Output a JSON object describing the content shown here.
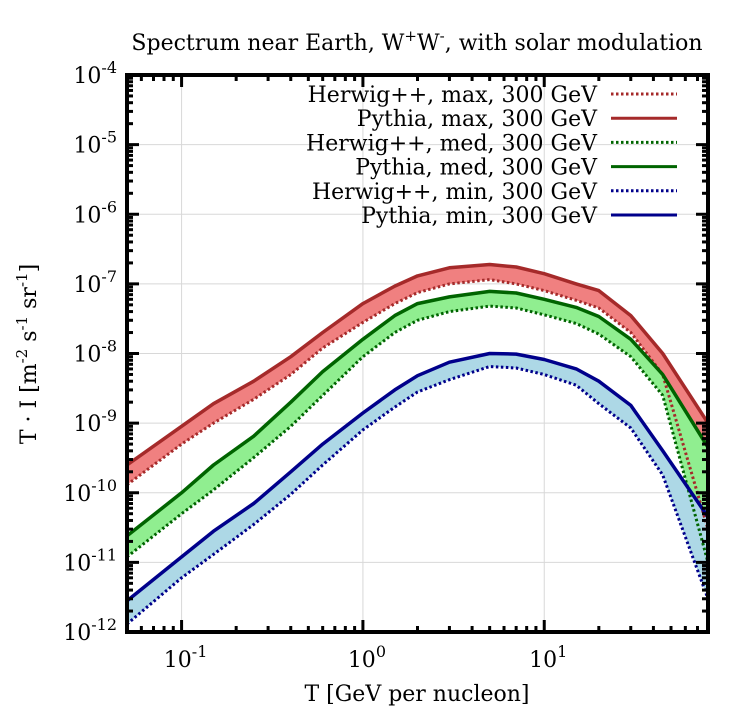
{
  "chart_data": {
    "type": "line",
    "title": "Spectrum near Earth, W+W-, with solar modulation",
    "xlabel": "T [GeV per nucleon]",
    "ylabel": "T · I [m-2 s-1 sr-1]",
    "xscale": "log",
    "yscale": "log",
    "xlim": [
      0.05,
      80
    ],
    "ylim": [
      1e-12,
      0.0001
    ],
    "grid": true,
    "legend_position": "top-right",
    "x_ticks": [
      {
        "value": 0.1,
        "base": "10",
        "exp": "-1"
      },
      {
        "value": 1,
        "base": "10",
        "exp": "0"
      },
      {
        "value": 10,
        "base": "10",
        "exp": "1"
      }
    ],
    "y_ticks": [
      {
        "value": 1e-12,
        "base": "10",
        "exp": "-12"
      },
      {
        "value": 1e-11,
        "base": "10",
        "exp": "-11"
      },
      {
        "value": 1e-10,
        "base": "10",
        "exp": "-10"
      },
      {
        "value": 1e-09,
        "base": "10",
        "exp": "-9"
      },
      {
        "value": 1e-08,
        "base": "10",
        "exp": "-8"
      },
      {
        "value": 1e-07,
        "base": "10",
        "exp": "-7"
      },
      {
        "value": 1e-06,
        "base": "10",
        "exp": "-6"
      },
      {
        "value": 1e-05,
        "base": "10",
        "exp": "-5"
      },
      {
        "value": 0.0001,
        "base": "10",
        "exp": "-4"
      }
    ],
    "x": [
      0.05,
      0.1,
      0.15,
      0.25,
      0.4,
      0.6,
      1,
      1.5,
      2,
      3,
      5,
      7,
      10,
      15,
      20,
      30,
      45,
      80
    ],
    "series": [
      {
        "name": "Herwig++, max, 300 GeV",
        "style": "dotted",
        "color": "#a52a2a",
        "values": [
          1.3e-10,
          5e-10,
          1e-09,
          2.2e-09,
          5e-09,
          1.2e-08,
          2.8e-08,
          5.2e-08,
          7.5e-08,
          1e-07,
          1.15e-07,
          1e-07,
          8e-08,
          5.8e-08,
          4.5e-08,
          2e-08,
          5e-09,
          3e-11
        ]
      },
      {
        "name": "Pythia, max, 300 GeV",
        "style": "solid",
        "color": "#a52a2a",
        "values": [
          2.5e-10,
          9e-10,
          1.9e-09,
          4e-09,
          9e-09,
          2e-08,
          5.2e-08,
          9.3e-08,
          1.3e-07,
          1.7e-07,
          1.9e-07,
          1.75e-07,
          1.4e-07,
          1e-07,
          8e-08,
          3.5e-08,
          1e-08,
          1e-09
        ]
      },
      {
        "name": "Herwig++, med, 300 GeV",
        "style": "dotted",
        "color": "#006400",
        "values": [
          1.2e-11,
          5e-11,
          1.1e-10,
          3.2e-10,
          9e-10,
          2.5e-09,
          9e-09,
          2e-08,
          3e-08,
          4e-08,
          4.8e-08,
          4.5e-08,
          3.6e-08,
          2.7e-08,
          1.9e-08,
          9e-09,
          2.5e-09,
          1e-11
        ]
      },
      {
        "name": "Pythia, med, 300 GeV",
        "style": "solid",
        "color": "#006400",
        "values": [
          2.4e-11,
          1e-10,
          2.5e-10,
          6.5e-10,
          2e-09,
          5.5e-09,
          1.6e-08,
          3.5e-08,
          5.2e-08,
          6.5e-08,
          7.8e-08,
          7.4e-08,
          6e-08,
          4.6e-08,
          3.4e-08,
          1.6e-08,
          5e-09,
          4.5e-10
        ]
      },
      {
        "name": "Herwig++, min, 300 GeV",
        "style": "dotted",
        "color": "#00008b",
        "values": [
          1.3e-12,
          6e-12,
          1.3e-11,
          3.5e-11,
          9.5e-11,
          2.5e-10,
          8e-10,
          1.7e-09,
          2.8e-09,
          4.2e-09,
          6.5e-09,
          6.2e-09,
          5e-09,
          3.5e-09,
          1.9e-09,
          8.5e-10,
          1.8e-10,
          3e-12
        ]
      },
      {
        "name": "Pythia, min, 300 GeV",
        "style": "solid",
        "color": "#00008b",
        "values": [
          2.8e-12,
          1.2e-11,
          2.8e-11,
          7e-11,
          2e-10,
          5e-10,
          1.4e-09,
          3e-09,
          4.8e-09,
          7.5e-09,
          1e-08,
          9.8e-09,
          8.2e-09,
          6e-09,
          4e-09,
          1.8e-09,
          4e-10,
          4.5e-11
        ]
      }
    ],
    "bands": [
      {
        "name": "max-band",
        "color": "#f08080",
        "series": [
          0,
          1
        ]
      },
      {
        "name": "med-band",
        "color": "#90ee90",
        "series": [
          2,
          3
        ]
      },
      {
        "name": "min-band",
        "color": "#add8e6",
        "series": [
          4,
          5
        ]
      }
    ]
  }
}
